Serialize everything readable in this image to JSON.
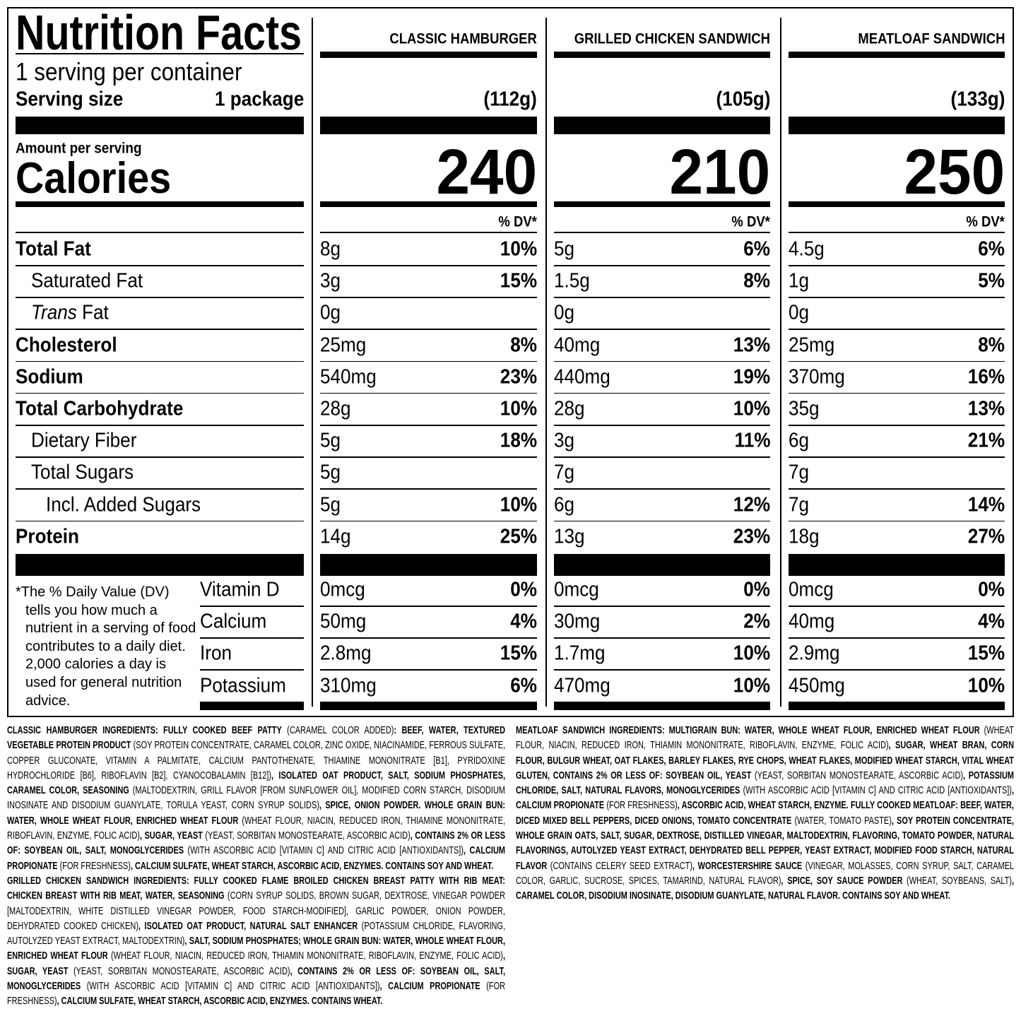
{
  "label": {
    "title": "Nutrition Facts",
    "servings": "1 serving per container",
    "serving_size_label": "Serving size",
    "serving_size_value": "1 package",
    "amount_per_serving": "Amount per serving",
    "calories_label": "Calories",
    "dv_header": "% DV*",
    "nutrients": [
      {
        "label": "Total Fat",
        "bold": true,
        "indent": 0
      },
      {
        "label": "Saturated Fat",
        "bold": false,
        "indent": 1
      },
      {
        "label_italic": "Trans",
        "label": "Fat",
        "bold": false,
        "indent": 1
      },
      {
        "label": "Cholesterol",
        "bold": true,
        "indent": 0
      },
      {
        "label": "Sodium",
        "bold": true,
        "indent": 0
      },
      {
        "label": "Total Carbohydrate",
        "bold": true,
        "indent": 0
      },
      {
        "label": "Dietary Fiber",
        "bold": false,
        "indent": 1
      },
      {
        "label": "Total Sugars",
        "bold": false,
        "indent": 1
      },
      {
        "label": "Incl. Added Sugars",
        "bold": false,
        "indent": 2
      },
      {
        "label": "Protein",
        "bold": true,
        "indent": 0
      }
    ],
    "vitamins": [
      "Vitamin D",
      "Calcium",
      "Iron",
      "Potassium"
    ],
    "footnote": "*The % Daily Value (DV) tells you how much a nutrient in a serving of food contributes to a daily diet. 2,000 calories a day is used for general nutrition advice.",
    "products": [
      {
        "name": "CLASSIC HAMBURGER",
        "serving": "(112g)",
        "calories": "240",
        "nutrients": [
          {
            "amount": "8g",
            "dv": "10%"
          },
          {
            "amount": "3g",
            "dv": "15%"
          },
          {
            "amount": "0g"
          },
          {
            "amount": "25mg",
            "dv": "8%"
          },
          {
            "amount": "540mg",
            "dv": "23%"
          },
          {
            "amount": "28g",
            "dv": "10%"
          },
          {
            "amount": "5g",
            "dv": "18%"
          },
          {
            "amount": "5g"
          },
          {
            "amount": "5g",
            "dv": "10%"
          },
          {
            "amount": "14g",
            "dv": "25%"
          }
        ],
        "vitamins": [
          {
            "amount": "0mcg",
            "dv": "0%"
          },
          {
            "amount": "50mg",
            "dv": "4%"
          },
          {
            "amount": "2.8mg",
            "dv": "15%"
          },
          {
            "amount": "310mg",
            "dv": "6%"
          }
        ]
      },
      {
        "name": "GRILLED CHICKEN SANDWICH",
        "serving": "(105g)",
        "calories": "210",
        "nutrients": [
          {
            "amount": "5g",
            "dv": "6%"
          },
          {
            "amount": "1.5g",
            "dv": "8%"
          },
          {
            "amount": "0g"
          },
          {
            "amount": "40mg",
            "dv": "13%"
          },
          {
            "amount": "440mg",
            "dv": "19%"
          },
          {
            "amount": "28g",
            "dv": "10%"
          },
          {
            "amount": "3g",
            "dv": "11%"
          },
          {
            "amount": "7g"
          },
          {
            "amount": "6g",
            "dv": "12%"
          },
          {
            "amount": "13g",
            "dv": "23%"
          }
        ],
        "vitamins": [
          {
            "amount": "0mcg",
            "dv": "0%"
          },
          {
            "amount": "30mg",
            "dv": "2%"
          },
          {
            "amount": "1.7mg",
            "dv": "10%"
          },
          {
            "amount": "470mg",
            "dv": "10%"
          }
        ]
      },
      {
        "name": "MEATLOAF SANDWICH",
        "serving": "(133g)",
        "calories": "250",
        "nutrients": [
          {
            "amount": "4.5g",
            "dv": "6%"
          },
          {
            "amount": "1g",
            "dv": "5%"
          },
          {
            "amount": "0g"
          },
          {
            "amount": "25mg",
            "dv": "8%"
          },
          {
            "amount": "370mg",
            "dv": "16%"
          },
          {
            "amount": "35g",
            "dv": "13%"
          },
          {
            "amount": "6g",
            "dv": "21%"
          },
          {
            "amount": "7g"
          },
          {
            "amount": "7g",
            "dv": "14%"
          },
          {
            "amount": "18g",
            "dv": "27%"
          }
        ],
        "vitamins": [
          {
            "amount": "0mcg",
            "dv": "0%"
          },
          {
            "amount": "40mg",
            "dv": "4%"
          },
          {
            "amount": "2.9mg",
            "dv": "15%"
          },
          {
            "amount": "450mg",
            "dv": "10%"
          }
        ]
      }
    ]
  },
  "ingredients": [
    {
      "runs": [
        {
          "text": "CLASSIC HAMBURGER INGREDIENTS: FULLY COOKED BEEF PATTY",
          "bold": true
        },
        {
          "text": " (CARAMEL COLOR ADDED)",
          "bold": false
        },
        {
          "text": ": BEEF, WATER, TEXTURED VEGETABLE PROTEIN PRODUCT",
          "bold": true
        },
        {
          "text": " (SOY PROTEIN CONCENTRATE, CARAMEL COLOR, ZINC OXIDE, NIACINAMIDE, FERROUS SULFATE, COPPER GLUCONATE, VITAMIN A PALMITATE, CALCIUM PANTOTHENATE, THIAMINE MONONITRATE [B1], PYRIDOXINE HYDROCHLORIDE [B6], RIBOFLAVIN [B2], CYANOCOBALAMIN [B12])",
          "bold": false
        },
        {
          "text": ", ISOLATED OAT PRODUCT, SALT, SODIUM PHOSPHATES, CARAMEL COLOR, SEASONING",
          "bold": true
        },
        {
          "text": " (MALTODEXTRIN, GRILL FLAVOR [FROM SUNFLOWER OIL], MODIFIED CORN STARCH, DISODIUM INOSINATE AND DISODIUM GUANYLATE, TORULA YEAST, CORN SYRUP SOLIDS)",
          "bold": false
        },
        {
          "text": ", SPICE, ONION POWDER. WHOLE GRAIN BUN: WATER, WHOLE WHEAT FLOUR, ENRICHED WHEAT FLOUR",
          "bold": true
        },
        {
          "text": " (WHEAT FLOUR, NIACIN, REDUCED IRON, THIAMINE MONONITRATE, RIBOFLAVIN, ENZYME, FOLIC ACID)",
          "bold": false
        },
        {
          "text": ", SUGAR, YEAST",
          "bold": true
        },
        {
          "text": " (YEAST, SORBITAN MONOSTEARATE, ASCORBIC ACID)",
          "bold": false
        },
        {
          "text": ", CONTAINS 2% OR LESS OF: SOYBEAN OIL, SALT, MONOGLYCERIDES",
          "bold": true
        },
        {
          "text": " (WITH ASCORBIC ACID [VITAMIN C] AND CITRIC ACID [ANTIOXIDANTS])",
          "bold": false
        },
        {
          "text": ", CALCIUM PROPIONATE",
          "bold": true
        },
        {
          "text": " (FOR FRESHNESS)",
          "bold": false
        },
        {
          "text": ", CALCIUM SULFATE, WHEAT STARCH, ASCORBIC ACID, ENZYMES. CONTAINS SOY AND WHEAT.",
          "bold": true
        }
      ]
    },
    {
      "runs": [
        {
          "text": "GRILLED CHICKEN SANDWICH INGREDIENTS: FULLY COOKED FLAME BROILED CHICKEN BREAST PATTY WITH RIB MEAT: CHICKEN BREAST WITH RIB MEAT, WATER, SEASONING",
          "bold": true
        },
        {
          "text": " (CORN SYRUP SOLIDS, BROWN SUGAR, DEXTROSE, VINEGAR POWDER [MALTODEXTRIN, WHITE DISTILLED VINEGAR POWDER, FOOD STARCH-MODIFIED], GARLIC POWDER, ONION POWDER, DEHYDRATED COOKED CHICKEN)",
          "bold": false
        },
        {
          "text": ", ISOLATED OAT PRODUCT, NATURAL SALT ENHANCER",
          "bold": true
        },
        {
          "text": " (POTASSIUM CHLORIDE, FLAVORING, AUTOLYZED YEAST EXTRACT, MALTODEXTRIN)",
          "bold": false
        },
        {
          "text": ", SALT, SODIUM PHOSPHATES; WHOLE GRAIN BUN: WATER, WHOLE WHEAT FLOUR, ENRICHED WHEAT FLOUR",
          "bold": true
        },
        {
          "text": " (WHEAT FLOUR, NIACIN, REDUCED IRON, THIAMIN MONONITRATE, RIBOFLAVIN, ENZYME, FOLIC ACID)",
          "bold": false
        },
        {
          "text": ", SUGAR, YEAST",
          "bold": true
        },
        {
          "text": " (YEAST, SORBITAN MONOSTEARATE, ASCORBIC ACID)",
          "bold": false
        },
        {
          "text": ", CONTAINS 2% OR LESS OF: SOYBEAN OIL, SALT, MONOGLYCERIDES",
          "bold": true
        },
        {
          "text": " (WITH ASCORBIC ACID [VITAMIN C] AND CITRIC ACID [ANTIOXIDANTS])",
          "bold": false
        },
        {
          "text": ", CALCIUM PROPIONATE",
          "bold": true
        },
        {
          "text": " (FOR FRESHNESS)",
          "bold": false
        },
        {
          "text": ", CALCIUM SULFATE, WHEAT STARCH, ASCORBIC ACID, ENZYMES. CONTAINS WHEAT.",
          "bold": true
        }
      ]
    },
    {
      "runs": [
        {
          "text": "MEATLOAF SANDWICH INGREDIENTS: MULTIGRAIN BUN: WATER, WHOLE WHEAT FLOUR, ENRICHED WHEAT FLOUR",
          "bold": true
        },
        {
          "text": " (WHEAT FLOUR, NIACIN, REDUCED IRON, THIAMIN MONONITRATE, RIBOFLAVIN, ENZYME, FOLIC ACID)",
          "bold": false
        },
        {
          "text": ", SUGAR, WHEAT BRAN, CORN FLOUR, BULGUR WHEAT, OAT FLAKES, BARLEY FLAKES, RYE CHOPS, WHEAT FLAKES, MODIFIED WHEAT STARCH, VITAL WHEAT GLUTEN, CONTAINS 2% OR LESS OF: SOYBEAN OIL, YEAST",
          "bold": true
        },
        {
          "text": " (YEAST, SORBITAN MONOSTEARATE, ASCORBIC ACID)",
          "bold": false
        },
        {
          "text": ", POTASSIUM CHLORIDE, SALT, NATURAL FLAVORS, MONOGLYCERIDES",
          "bold": true
        },
        {
          "text": " (WITH ASCORBIC ACID [VITAMIN C] AND CITRIC ACID [ANTIOXIDANTS])",
          "bold": false
        },
        {
          "text": ", CALCIUM PROPIONATE",
          "bold": true
        },
        {
          "text": " (FOR FRESHNESS)",
          "bold": false
        },
        {
          "text": ", ASCORBIC ACID, WHEAT STARCH, ENZYME. FULLY COOKED MEATLOAF: BEEF, WATER, DICED MIXED BELL PEPPERS, DICED ONIONS, TOMATO CONCENTRATE",
          "bold": true
        },
        {
          "text": " (WATER, TOMATO PASTE)",
          "bold": false
        },
        {
          "text": ", SOY PROTEIN CONCENTRATE, WHOLE GRAIN OATS, SALT, SUGAR, DEXTROSE, DISTILLED VINEGAR, MALTODEXTRIN, FLAVORING, TOMATO POWDER, NATURAL FLAVORINGS, AUTOLYZED YEAST EXTRACT, DEHYDRATED BELL PEPPER, YEAST EXTRACT, MODIFIED FOOD STARCH, NATURAL FLAVOR",
          "bold": true
        },
        {
          "text": " (CONTAINS CELERY SEED EXTRACT)",
          "bold": false
        },
        {
          "text": ", WORCESTERSHIRE SAUCE",
          "bold": true
        },
        {
          "text": " (VINEGAR, MOLASSES, CORN SYRUP, SALT, CARAMEL COLOR, GARLIC, SUCROSE, SPICES, TAMARIND, NATURAL FLAVOR)",
          "bold": false
        },
        {
          "text": ", SPICE, SOY SAUCE POWDER",
          "bold": true
        },
        {
          "text": " (WHEAT, SOYBEANS, SALT)",
          "bold": false
        },
        {
          "text": ", CARAMEL COLOR, DISODIUM INOSINATE, DISODIUM GUANYLATE, NATURAL FLAVOR. CONTAINS SOY AND WHEAT.",
          "bold": true
        }
      ]
    }
  ]
}
